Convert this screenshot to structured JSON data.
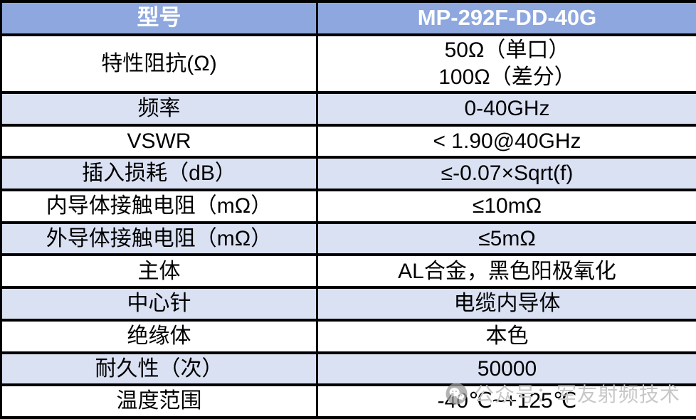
{
  "colors": {
    "header_bg": "#8EA7DE",
    "header_text": "#FFFFFF",
    "shaded_row_bg": "#DAE1F3",
    "row_bg": "#FFFFFF",
    "border": "#000000",
    "text": "#000000",
    "watermark": "#C7C7C7"
  },
  "table": {
    "header": {
      "label": "型号",
      "model": "MP-292F-DD-40G"
    },
    "rows": [
      {
        "label": "特性阻抗(Ω)",
        "value_lines": [
          "50Ω（单口）",
          "100Ω（差分）"
        ],
        "shaded": false,
        "tall": true
      },
      {
        "label": "频率",
        "value_lines": [
          "0-40GHz"
        ],
        "shaded": true
      },
      {
        "label": "VSWR",
        "value_lines": [
          "< 1.90@40GHz"
        ],
        "shaded": false
      },
      {
        "label": "插入损耗（dB）",
        "value_lines": [
          "≤-0.07×Sqrt(f)"
        ],
        "shaded": true
      },
      {
        "label": "内导体接触电阻（mΩ）",
        "value_lines": [
          "≤10mΩ"
        ],
        "shaded": false
      },
      {
        "label": "外导体接触电阻（mΩ）",
        "value_lines": [
          "≤5mΩ"
        ],
        "shaded": true
      },
      {
        "label": "主体",
        "value_lines": [
          "AL合金，黑色阳极氧化"
        ],
        "shaded": false
      },
      {
        "label": "中心针",
        "value_lines": [
          "电缆内导体"
        ],
        "shaded": true
      },
      {
        "label": "绝缘体",
        "value_lines": [
          "本色"
        ],
        "shaded": false
      },
      {
        "label": "耐久性（次）",
        "value_lines": [
          "50000"
        ],
        "shaded": true
      },
      {
        "label": "温度范围",
        "value_lines": [
          "-40℃~+125℃"
        ],
        "shaded": false
      }
    ]
  },
  "watermark": {
    "icon": "wechat-official-account-icon",
    "text": "公众号：军友射频技术"
  }
}
